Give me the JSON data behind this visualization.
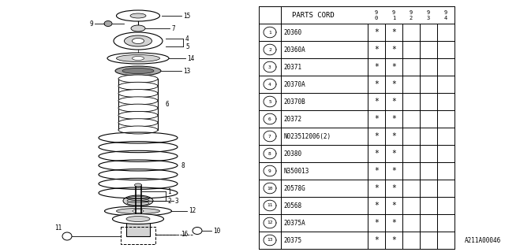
{
  "parts_cord_header": "PARTS CORD",
  "year_cols": [
    "9\n0",
    "9\n1",
    "9\n2",
    "9\n3",
    "9\n4"
  ],
  "parts": [
    {
      "num": 1,
      "code": "20360",
      "years": [
        true,
        true,
        false,
        false,
        false
      ]
    },
    {
      "num": 2,
      "code": "20360A",
      "years": [
        true,
        true,
        false,
        false,
        false
      ]
    },
    {
      "num": 3,
      "code": "20371",
      "years": [
        true,
        true,
        false,
        false,
        false
      ]
    },
    {
      "num": 4,
      "code": "20370A",
      "years": [
        true,
        true,
        false,
        false,
        false
      ]
    },
    {
      "num": 5,
      "code": "20370B",
      "years": [
        true,
        true,
        false,
        false,
        false
      ]
    },
    {
      "num": 6,
      "code": "20372",
      "years": [
        true,
        true,
        false,
        false,
        false
      ]
    },
    {
      "num": 7,
      "code": "N023512006(2)",
      "years": [
        true,
        true,
        false,
        false,
        false
      ]
    },
    {
      "num": 8,
      "code": "20380",
      "years": [
        true,
        true,
        false,
        false,
        false
      ]
    },
    {
      "num": 9,
      "code": "N350013",
      "years": [
        true,
        true,
        false,
        false,
        false
      ]
    },
    {
      "num": 10,
      "code": "20578G",
      "years": [
        true,
        true,
        false,
        false,
        false
      ]
    },
    {
      "num": 11,
      "code": "20568",
      "years": [
        true,
        true,
        false,
        false,
        false
      ]
    },
    {
      "num": 12,
      "code": "20375A",
      "years": [
        true,
        true,
        false,
        false,
        false
      ]
    },
    {
      "num": 13,
      "code": "20375",
      "years": [
        true,
        true,
        false,
        false,
        false
      ]
    }
  ],
  "footnote": "A211A00046",
  "bg_color": "#ffffff"
}
